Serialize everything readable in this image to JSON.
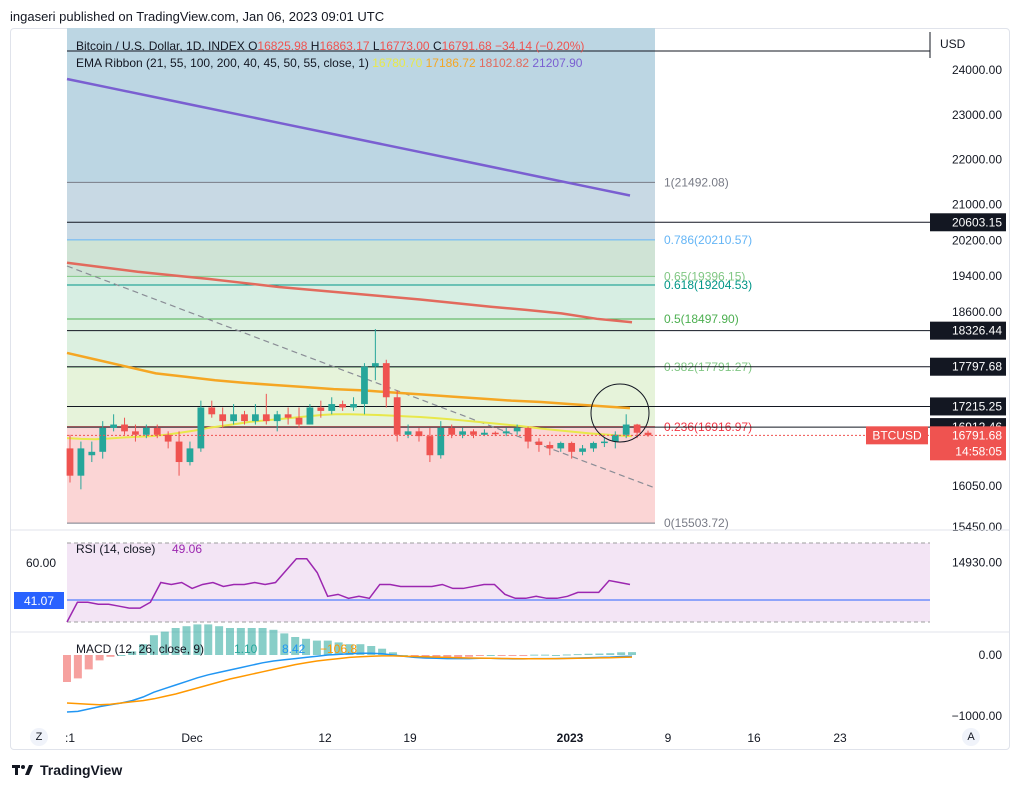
{
  "header": {
    "published": "ingaseri published on TradingView.com, Jan 06, 2023 09:01 UTC"
  },
  "legend": {
    "symbol": "Bitcoin / U.S. Dollar, 1D, INDEX",
    "o_label": "O",
    "o": "16825.98",
    "h_label": "H",
    "h": "16863.17",
    "l_label": "L",
    "l": "16773.00",
    "c_label": "C",
    "c": "16791.68",
    "chg": "−34.14 (−0.20%)",
    "ema_label": "EMA Ribbon (21, 55, 100, 200, 40, 45, 50, 55, close, 1)",
    "ema_values": [
      "16780.70",
      "17186.72",
      "18102.82",
      "21207.90"
    ]
  },
  "currency": "USD",
  "colors": {
    "up": "#26a69a",
    "down": "#ef5350",
    "ema21": "#e8e84a",
    "ema55": "#f5a623",
    "ema100": "#e26a5d",
    "ema200": "#7a5fd1",
    "rsi": "#9c27b0",
    "macd": "#2196f3",
    "signal": "#ff9800"
  },
  "price_axis": [
    "24000.00",
    "23000.00",
    "22000.00",
    "21000.00",
    "20200.00",
    "19400.00",
    "18600.00",
    "16050.00",
    "15450.00",
    "14930.00"
  ],
  "price_tags": [
    {
      "label": "20603.15",
      "price": 20603.15
    },
    {
      "label": "18326.44",
      "price": 18326.44
    },
    {
      "label": "17797.68",
      "price": 17797.68
    },
    {
      "label": "17215.25",
      "price": 17215.25
    },
    {
      "label": "16912.46",
      "price": 16912.46
    }
  ],
  "btc_tag": {
    "name": "BTCUSD",
    "price": "16791.68",
    "countdown": "14:58:05"
  },
  "fib": [
    {
      "label": "1(21492.08)",
      "price": 21492.08,
      "color": "#787b86"
    },
    {
      "label": "0.786(20210.57)",
      "price": 20210.57,
      "color": "#64b5f6"
    },
    {
      "label": "0.65(19396.15)",
      "price": 19396.15,
      "color": "#81c784"
    },
    {
      "label": "0.618(19204.53)",
      "price": 19204.53,
      "color": "#009688"
    },
    {
      "label": "0.5(18497.90)",
      "price": 18497.9,
      "color": "#4caf50"
    },
    {
      "label": "0.382(17791.27)",
      "price": 17791.27,
      "color": "#81c784"
    },
    {
      "label": "0.236(16916.97)",
      "price": 16916.97,
      "color": "#f23645"
    },
    {
      "label": "0(15503.72)",
      "price": 15503.72,
      "color": "#787b86"
    }
  ],
  "time_axis": [
    ":1",
    "Dec",
    "12",
    "19",
    "2023",
    "9",
    "16",
    "23"
  ],
  "rsi": {
    "label": "RSI (14, close)",
    "value": "49.06",
    "axis_60": "60.00",
    "tag": "41.07"
  },
  "macd": {
    "label": "MACD (12, 26, close, 9)",
    "v1": "1.10",
    "v2": "8.42",
    "v3": "−106.8",
    "axis": [
      "0.00",
      "−1000.00"
    ]
  },
  "footer": {
    "brand": "TradingView"
  },
  "corners": {
    "left": "Z",
    "right": "A"
  },
  "chart_data": {
    "type": "candlestick",
    "title": "Bitcoin / U.S. Dollar, 1D, INDEX",
    "ylim": [
      14800,
      24300
    ],
    "candles": [
      [
        16600,
        16800,
        16100,
        16200
      ],
      [
        16200,
        16700,
        16000,
        16600
      ],
      [
        16500,
        16700,
        16400,
        16550
      ],
      [
        16550,
        17000,
        16450,
        16900
      ],
      [
        16900,
        17100,
        16850,
        16950
      ],
      [
        16950,
        17050,
        16800,
        16850
      ],
      [
        16850,
        16950,
        16700,
        16800
      ],
      [
        16800,
        16950,
        16750,
        16900
      ],
      [
        16900,
        16950,
        16750,
        16800
      ],
      [
        16800,
        16850,
        16600,
        16700
      ],
      [
        16700,
        16850,
        16200,
        16400
      ],
      [
        16400,
        16700,
        16350,
        16600
      ],
      [
        16600,
        17300,
        16550,
        17200
      ],
      [
        17200,
        17300,
        17050,
        17100
      ],
      [
        17100,
        17200,
        16900,
        17000
      ],
      [
        17000,
        17250,
        16950,
        17100
      ],
      [
        17100,
        17150,
        16950,
        17000
      ],
      [
        17000,
        17250,
        16950,
        17100
      ],
      [
        17100,
        17400,
        16950,
        17000
      ],
      [
        17000,
        17150,
        16850,
        17100
      ],
      [
        17100,
        17200,
        16950,
        17050
      ],
      [
        17050,
        17200,
        16900,
        16950
      ],
      [
        16950,
        17250,
        16950,
        17200
      ],
      [
        17200,
        17300,
        17050,
        17150
      ],
      [
        17150,
        17350,
        17100,
        17250
      ],
      [
        17250,
        17300,
        17150,
        17200
      ],
      [
        17200,
        17350,
        17150,
        17250
      ],
      [
        17250,
        17850,
        17100,
        17800
      ],
      [
        17800,
        18350,
        17600,
        17850
      ],
      [
        17850,
        17900,
        17200,
        17350
      ],
      [
        17350,
        17450,
        16700,
        16800
      ],
      [
        16800,
        16950,
        16750,
        16850
      ],
      [
        16850,
        16900,
        16700,
        16780
      ],
      [
        16780,
        16900,
        16400,
        16500
      ],
      [
        16500,
        17000,
        16450,
        16900
      ],
      [
        16900,
        16950,
        16750,
        16800
      ],
      [
        16800,
        16900,
        16750,
        16850
      ],
      [
        16850,
        16880,
        16750,
        16800
      ],
      [
        16800,
        16880,
        16780,
        16830
      ],
      [
        16830,
        16850,
        16780,
        16820
      ],
      [
        16820,
        16900,
        16780,
        16850
      ],
      [
        16850,
        16950,
        16800,
        16900
      ],
      [
        16900,
        16920,
        16600,
        16700
      ],
      [
        16700,
        16750,
        16550,
        16650
      ],
      [
        16650,
        16700,
        16500,
        16600
      ],
      [
        16600,
        16700,
        16550,
        16680
      ],
      [
        16680,
        16700,
        16450,
        16550
      ],
      [
        16550,
        16650,
        16500,
        16600
      ],
      [
        16600,
        16700,
        16550,
        16680
      ],
      [
        16680,
        16760,
        16620,
        16700
      ],
      [
        16700,
        16850,
        16600,
        16800
      ],
      [
        16800,
        17100,
        16750,
        16950
      ],
      [
        16950,
        16960,
        16750,
        16830
      ],
      [
        16830,
        16860,
        16770,
        16792
      ]
    ],
    "ema21": [
      16750,
      16740,
      16735,
      16745,
      16760,
      16770,
      16780,
      16800,
      16830,
      16860,
      16900,
      16930,
      16960,
      16990,
      17010,
      17030,
      17050,
      17070,
      17090,
      17100,
      17100,
      17095,
      17090,
      17080,
      17070,
      17060,
      17045,
      17030,
      17010,
      16990,
      16970,
      16950,
      16930,
      16905,
      16880,
      16860,
      16840,
      16820,
      16805,
      16790,
      16780
    ],
    "ema55": [
      18000,
      17900,
      17800,
      17700,
      17650,
      17600,
      17560,
      17530,
      17500,
      17470,
      17450,
      17420,
      17390,
      17360,
      17330,
      17300,
      17280,
      17250,
      17220,
      17190
    ],
    "ema100": [
      19700,
      19600,
      19500,
      19420,
      19340,
      19250,
      19160,
      19090,
      19020,
      18950,
      18880,
      18800,
      18720,
      18650,
      18580,
      18500,
      18450
    ],
    "ema200": [
      23800,
      23600,
      23400,
      23200,
      23000,
      22800,
      22600,
      22400,
      22200,
      22000,
      21800,
      21600,
      21400,
      21200
    ],
    "rsi_values": [
      30,
      40,
      40,
      39,
      39,
      38,
      37,
      37,
      40,
      50,
      49,
      50,
      47,
      49,
      50,
      48,
      49,
      49,
      50,
      49,
      50,
      56,
      62,
      62,
      55,
      43,
      44,
      42,
      43,
      42,
      49,
      49,
      48,
      48,
      48,
      48,
      49,
      47,
      47,
      48,
      49,
      49,
      44,
      42,
      42,
      43,
      42,
      42,
      43,
      45,
      45,
      45,
      51,
      50,
      49
    ],
    "rsi_band": [
      30,
      70
    ],
    "macd_line": [
      -950,
      -940,
      -900,
      -860,
      -830,
      -800,
      -760,
      -700,
      -620,
      -560,
      -500,
      -440,
      -380,
      -330,
      -290,
      -250,
      -210,
      -170,
      -130,
      -100,
      -80,
      -60,
      -40,
      -20,
      0,
      10,
      20,
      30,
      30,
      20,
      0,
      -20,
      -40,
      -50,
      -55,
      -60,
      -60,
      -60,
      -55,
      -55,
      -60,
      -65,
      -65,
      -60,
      -60,
      -60,
      -55,
      -50,
      -45,
      -40,
      -35,
      -25,
      -20
    ],
    "signal_line": [
      -800,
      -810,
      -820,
      -830,
      -820,
      -800,
      -780,
      -760,
      -730,
      -690,
      -650,
      -600,
      -550,
      -500,
      -450,
      -400,
      -360,
      -320,
      -280,
      -240,
      -200,
      -160,
      -130,
      -100,
      -80,
      -60,
      -40,
      -30,
      -20,
      -15,
      -15,
      -20,
      -25,
      -30,
      -35,
      -40,
      -45,
      -50,
      -52,
      -55,
      -58,
      -60,
      -62,
      -62,
      -62,
      -60,
      -58,
      -55,
      -52,
      -48,
      -45,
      -40,
      -36
    ]
  }
}
